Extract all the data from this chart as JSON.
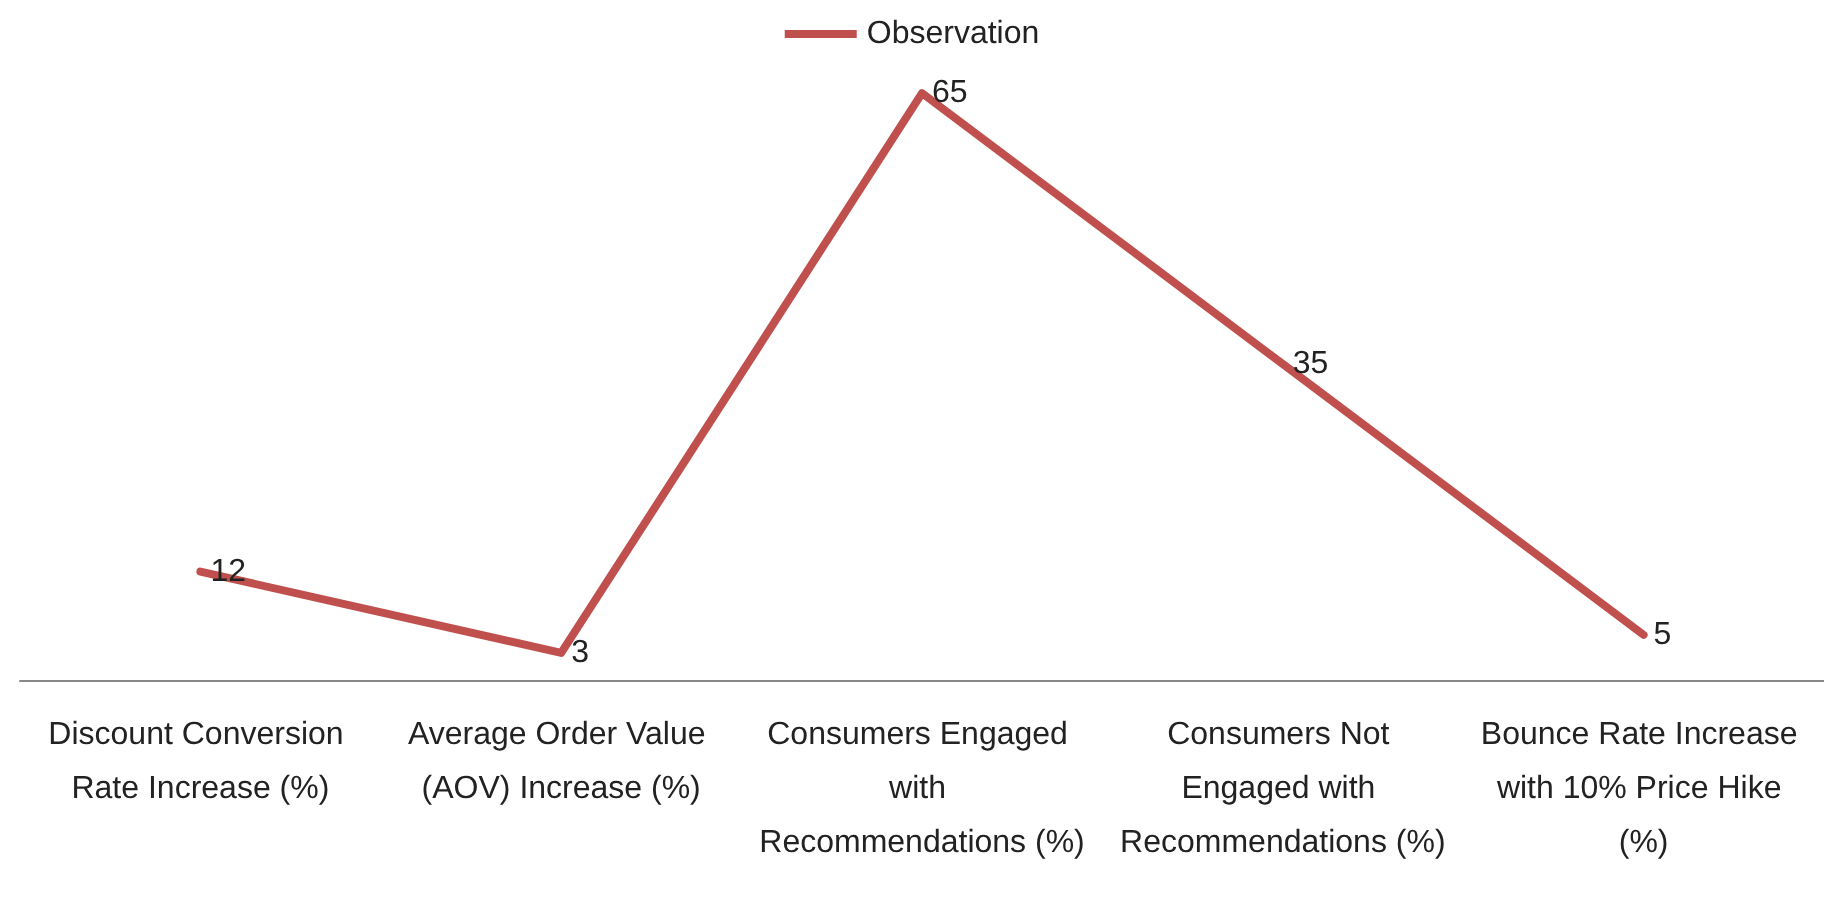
{
  "chart_data": {
    "type": "line",
    "categories": [
      "Discount Conversion Rate Increase (%)",
      "Average Order Value (AOV) Increase (%)",
      "Consumers Engaged with Recommendations (%)",
      "Consumers Not Engaged with Recommendations (%)",
      "Bounce Rate Increase with 10% Price Hike (%)"
    ],
    "series": [
      {
        "name": "Observation",
        "color": "#c0504d",
        "values": [
          12,
          3,
          65,
          35,
          5
        ]
      }
    ],
    "data_labels": true,
    "legend": "top",
    "marker": "none",
    "line_style": "solid",
    "grid": false
  }
}
